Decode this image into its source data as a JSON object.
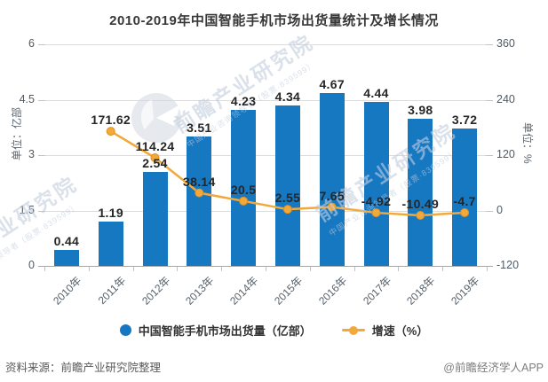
{
  "title": "2010-2019年中国智能手机市场出货量统计及增长情况",
  "chart_data": {
    "type": "bar",
    "title": "2010-2019年中国智能手机市场出货量统计及增长情况",
    "categories": [
      "2010年",
      "2011年",
      "2012年",
      "2013年",
      "2014年",
      "2015年",
      "2016年",
      "2017年",
      "2018年",
      "2019年"
    ],
    "series": [
      {
        "name": "中国智能手机市场出货量（亿部）",
        "type": "bar",
        "axis": "left",
        "color": "#1778c2",
        "values": [
          0.44,
          1.19,
          2.54,
          3.51,
          4.23,
          4.34,
          4.67,
          4.44,
          3.98,
          3.72
        ]
      },
      {
        "name": "增速（%）",
        "type": "line",
        "axis": "right",
        "color": "#f2a93b",
        "values": [
          null,
          171.62,
          114.24,
          38.14,
          20.5,
          2.55,
          7.65,
          -4.92,
          -10.49,
          -4.7
        ]
      }
    ],
    "left_axis": {
      "label": "单位：亿部",
      "min": 0,
      "max": 6,
      "ticks": [
        0,
        1.5,
        3,
        4.5,
        6
      ]
    },
    "right_axis": {
      "label": "单位：%",
      "min": -120,
      "max": 360,
      "ticks": [
        -120,
        0,
        120,
        240,
        360
      ]
    },
    "grid": true,
    "legend_position": "bottom"
  },
  "footer": {
    "source": "资料来源：前瞻产业研究院整理",
    "credit": "@前瞻经济学人APP"
  },
  "watermark": {
    "main_text": "前瞻产业研究院",
    "sub_text": "中国产业咨询领导者（股票·839599）",
    "color": "#c3cedd"
  }
}
